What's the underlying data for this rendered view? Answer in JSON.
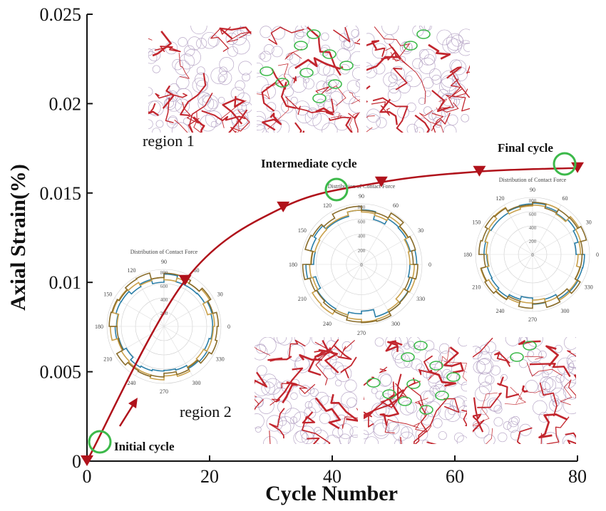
{
  "chart_data": {
    "type": "line",
    "xlabel": "Cycle Number",
    "ylabel": "Axial Strain(%)",
    "xlim": [
      0,
      80
    ],
    "ylim": [
      0,
      0.025
    ],
    "x_ticks": [
      "0",
      "20",
      "40",
      "60",
      "80"
    ],
    "y_ticks": [
      "0",
      "0.005",
      "0.01",
      "0.015",
      "0.02",
      "0.025"
    ],
    "series": [
      {
        "color": "#b0121b",
        "marker": "triangle-down",
        "x": [
          0,
          16,
          32,
          48,
          64,
          80
        ],
        "y": [
          0,
          0.0101,
          0.0142,
          0.0156,
          0.0162,
          0.0164
        ]
      }
    ],
    "annotations": [
      {
        "text": "Initial cycle",
        "x": 2,
        "y": 0.001
      },
      {
        "text": "Intermediate cycle",
        "x": 40,
        "y": 0.0152
      },
      {
        "text": "Final cycle",
        "x": 78,
        "y": 0.0166
      },
      {
        "text": "region 1"
      },
      {
        "text": "region 2"
      }
    ],
    "polar_insets": [
      {
        "title": "Distribution of Contact Force",
        "radial_ticks": [
          "200",
          "400",
          "600",
          "800"
        ],
        "angle_ticks": [
          "0",
          "30",
          "60",
          "90",
          "120",
          "150",
          "180",
          "210",
          "240",
          "270",
          "300",
          "330"
        ]
      },
      {
        "title": "Distribution of Contact Force",
        "radial_ticks": [
          "0",
          "200",
          "400",
          "600",
          "800"
        ],
        "angle_ticks": [
          "0",
          "30",
          "60",
          "90",
          "120",
          "150",
          "180",
          "210",
          "240",
          "270",
          "300",
          "330"
        ]
      },
      {
        "title": "Distribution of Contact Force",
        "radial_ticks": [
          "0",
          "200",
          "400",
          "600",
          "800"
        ],
        "angle_ticks": [
          "0",
          "30",
          "60",
          "90",
          "120",
          "150",
          "180",
          "210",
          "240",
          "270",
          "300",
          "330"
        ]
      }
    ]
  },
  "colors": {
    "curve": "#b0121b",
    "highlight": "#3cb94a",
    "polar_a": "#2b7fa8",
    "polar_b": "#c9a04a",
    "polar_c": "#8a6d2b",
    "force_chain": "#c2262e",
    "particle": "#b9a8c8"
  }
}
